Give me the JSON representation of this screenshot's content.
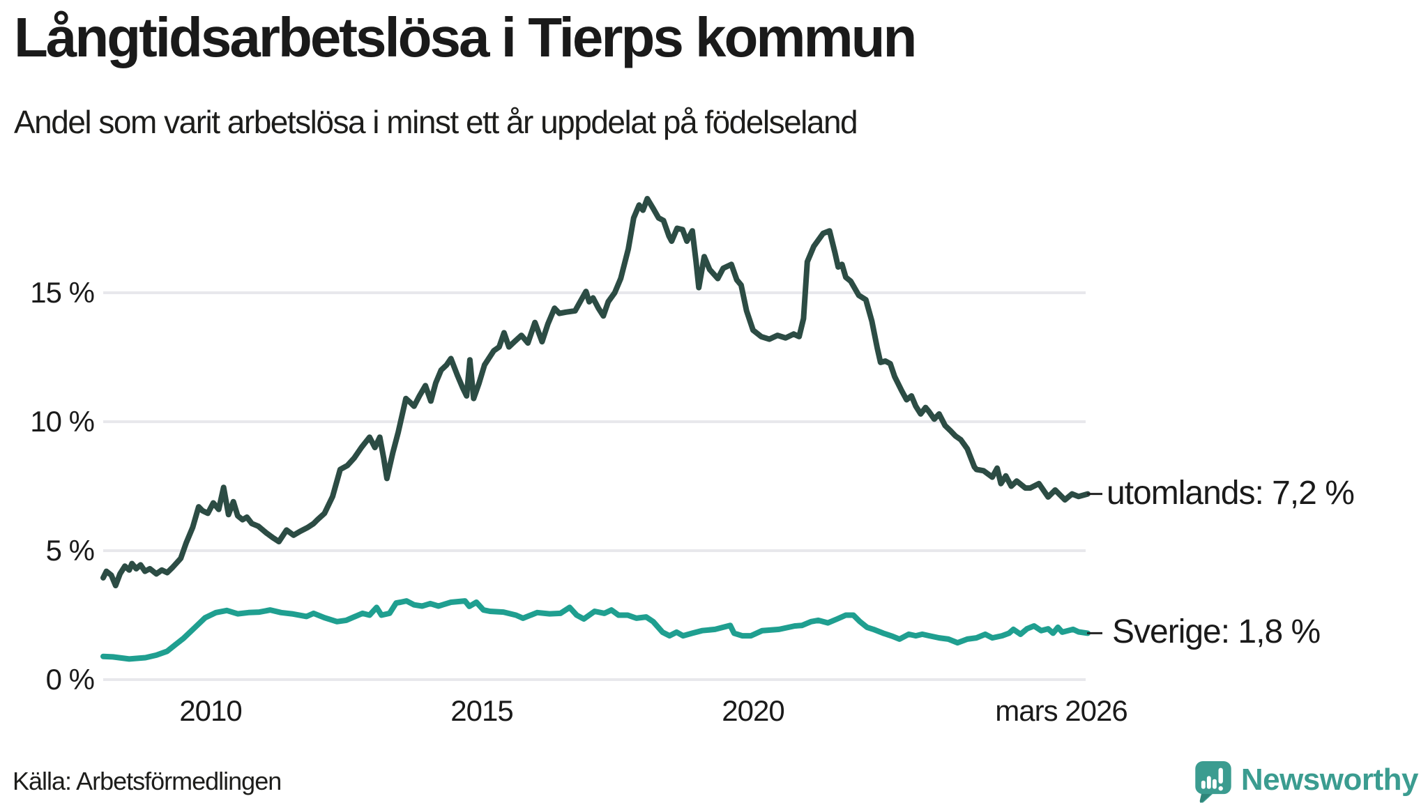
{
  "header": {
    "title": "Långtidsarbetslösa i Tierps kommun",
    "subtitle": "Andel som varit arbetslösa i minst ett år uppdelat på födelseland"
  },
  "footer": {
    "source": "Källa: Arbetsförmedlingen",
    "brand": "Newsworthy"
  },
  "colors": {
    "utomlands_line": "#2c4c44",
    "sverige_line": "#1f9f90",
    "gridline": "#e8e8ec",
    "text": "#1a1a1a",
    "brand_teal": "#3b9c90",
    "brand_teal_dark": "#2f8579"
  },
  "chart_data": {
    "type": "line",
    "title": "Långtidsarbetslösa i Tierps kommun",
    "subtitle": "Andel som varit arbetslösa i minst ett år uppdelat på födelseland",
    "source": "Källa: Arbetsförmedlingen",
    "grid": true,
    "unit": "%",
    "x_axis": {
      "start_year": 2008.0,
      "end_year": 2026.17,
      "ticks": [
        {
          "label": "2010",
          "year": 2010.0
        },
        {
          "label": "2015",
          "year": 2015.0
        },
        {
          "label": "2020",
          "year": 2020.0
        },
        {
          "label": "mars 2026",
          "year": 2026.17
        }
      ]
    },
    "y_axis": {
      "min": 0,
      "max": 18.7,
      "ticks": [
        {
          "label": "0 %",
          "value": 0
        },
        {
          "label": "5 %",
          "value": 5
        },
        {
          "label": "10 %",
          "value": 10
        },
        {
          "label": "15 %",
          "value": 15
        }
      ]
    },
    "series": [
      {
        "name": "utomlands",
        "label": "utomlands: 7,2 %",
        "last_value": 7.2,
        "color": "#2c4c44",
        "points": [
          [
            2008.02,
            3.95
          ],
          [
            2008.08,
            4.2
          ],
          [
            2008.17,
            4.05
          ],
          [
            2008.25,
            3.65
          ],
          [
            2008.33,
            4.1
          ],
          [
            2008.42,
            4.4
          ],
          [
            2008.5,
            4.25
          ],
          [
            2008.55,
            4.5
          ],
          [
            2008.63,
            4.3
          ],
          [
            2008.71,
            4.45
          ],
          [
            2008.79,
            4.2
          ],
          [
            2008.88,
            4.3
          ],
          [
            2009.0,
            4.1
          ],
          [
            2009.1,
            4.25
          ],
          [
            2009.2,
            4.15
          ],
          [
            2009.3,
            4.35
          ],
          [
            2009.45,
            4.7
          ],
          [
            2009.55,
            5.3
          ],
          [
            2009.67,
            5.9
          ],
          [
            2009.78,
            6.7
          ],
          [
            2009.85,
            6.55
          ],
          [
            2009.95,
            6.45
          ],
          [
            2010.05,
            6.85
          ],
          [
            2010.15,
            6.6
          ],
          [
            2010.24,
            7.45
          ],
          [
            2010.33,
            6.4
          ],
          [
            2010.42,
            6.9
          ],
          [
            2010.5,
            6.35
          ],
          [
            2010.59,
            6.2
          ],
          [
            2010.67,
            6.3
          ],
          [
            2010.76,
            6.05
          ],
          [
            2010.88,
            5.95
          ],
          [
            2011.02,
            5.7
          ],
          [
            2011.15,
            5.5
          ],
          [
            2011.26,
            5.35
          ],
          [
            2011.4,
            5.8
          ],
          [
            2011.53,
            5.6
          ],
          [
            2011.65,
            5.75
          ],
          [
            2011.79,
            5.9
          ],
          [
            2011.9,
            6.05
          ],
          [
            2011.97,
            6.2
          ],
          [
            2012.1,
            6.45
          ],
          [
            2012.25,
            7.1
          ],
          [
            2012.39,
            8.15
          ],
          [
            2012.52,
            8.3
          ],
          [
            2012.65,
            8.6
          ],
          [
            2012.78,
            9.0
          ],
          [
            2012.93,
            9.4
          ],
          [
            2013.03,
            9.0
          ],
          [
            2013.12,
            9.4
          ],
          [
            2013.19,
            8.6
          ],
          [
            2013.25,
            7.8
          ],
          [
            2013.36,
            8.8
          ],
          [
            2013.46,
            9.6
          ],
          [
            2013.6,
            10.9
          ],
          [
            2013.68,
            10.75
          ],
          [
            2013.75,
            10.6
          ],
          [
            2013.85,
            11.0
          ],
          [
            2013.96,
            11.4
          ],
          [
            2014.06,
            10.8
          ],
          [
            2014.15,
            11.5
          ],
          [
            2014.25,
            12.0
          ],
          [
            2014.35,
            12.2
          ],
          [
            2014.43,
            12.45
          ],
          [
            2014.55,
            11.8
          ],
          [
            2014.65,
            11.3
          ],
          [
            2014.72,
            11.0
          ],
          [
            2014.78,
            12.4
          ],
          [
            2014.85,
            10.9
          ],
          [
            2014.95,
            11.5
          ],
          [
            2015.05,
            12.2
          ],
          [
            2015.22,
            12.75
          ],
          [
            2015.32,
            12.9
          ],
          [
            2015.41,
            13.45
          ],
          [
            2015.5,
            12.9
          ],
          [
            2015.6,
            13.1
          ],
          [
            2015.73,
            13.35
          ],
          [
            2015.85,
            13.05
          ],
          [
            2015.98,
            13.85
          ],
          [
            2016.11,
            13.1
          ],
          [
            2016.22,
            13.8
          ],
          [
            2016.34,
            14.4
          ],
          [
            2016.43,
            14.2
          ],
          [
            2016.55,
            14.25
          ],
          [
            2016.72,
            14.3
          ],
          [
            2016.8,
            14.6
          ],
          [
            2016.92,
            15.05
          ],
          [
            2016.98,
            14.65
          ],
          [
            2017.05,
            14.8
          ],
          [
            2017.15,
            14.4
          ],
          [
            2017.24,
            14.1
          ],
          [
            2017.33,
            14.65
          ],
          [
            2017.45,
            15.0
          ],
          [
            2017.56,
            15.55
          ],
          [
            2017.7,
            16.7
          ],
          [
            2017.8,
            17.9
          ],
          [
            2017.9,
            18.4
          ],
          [
            2017.97,
            18.2
          ],
          [
            2018.05,
            18.65
          ],
          [
            2018.15,
            18.3
          ],
          [
            2018.26,
            17.9
          ],
          [
            2018.35,
            17.8
          ],
          [
            2018.45,
            17.2
          ],
          [
            2018.5,
            17.0
          ],
          [
            2018.6,
            17.5
          ],
          [
            2018.7,
            17.45
          ],
          [
            2018.78,
            17.0
          ],
          [
            2018.88,
            17.4
          ],
          [
            2018.95,
            16.2
          ],
          [
            2019.0,
            15.2
          ],
          [
            2019.1,
            16.4
          ],
          [
            2019.2,
            15.9
          ],
          [
            2019.35,
            15.55
          ],
          [
            2019.45,
            15.95
          ],
          [
            2019.6,
            16.1
          ],
          [
            2019.7,
            15.5
          ],
          [
            2019.78,
            15.3
          ],
          [
            2019.88,
            14.3
          ],
          [
            2020.0,
            13.55
          ],
          [
            2020.15,
            13.3
          ],
          [
            2020.3,
            13.2
          ],
          [
            2020.45,
            13.35
          ],
          [
            2020.6,
            13.25
          ],
          [
            2020.75,
            13.4
          ],
          [
            2020.85,
            13.3
          ],
          [
            2020.93,
            14.0
          ],
          [
            2021.0,
            16.2
          ],
          [
            2021.12,
            16.8
          ],
          [
            2021.29,
            17.3
          ],
          [
            2021.41,
            17.4
          ],
          [
            2021.51,
            16.55
          ],
          [
            2021.57,
            16.0
          ],
          [
            2021.64,
            16.1
          ],
          [
            2021.71,
            15.6
          ],
          [
            2021.8,
            15.45
          ],
          [
            2021.95,
            14.9
          ],
          [
            2022.08,
            14.73
          ],
          [
            2022.19,
            13.9
          ],
          [
            2022.29,
            12.85
          ],
          [
            2022.35,
            12.3
          ],
          [
            2022.44,
            12.35
          ],
          [
            2022.53,
            12.25
          ],
          [
            2022.61,
            11.75
          ],
          [
            2022.74,
            11.2
          ],
          [
            2022.83,
            10.85
          ],
          [
            2022.92,
            11.0
          ],
          [
            2023.0,
            10.6
          ],
          [
            2023.09,
            10.3
          ],
          [
            2023.18,
            10.55
          ],
          [
            2023.24,
            10.4
          ],
          [
            2023.34,
            10.1
          ],
          [
            2023.43,
            10.3
          ],
          [
            2023.54,
            9.85
          ],
          [
            2023.64,
            9.65
          ],
          [
            2023.73,
            9.45
          ],
          [
            2023.83,
            9.3
          ],
          [
            2023.95,
            8.95
          ],
          [
            2024.08,
            8.25
          ],
          [
            2024.12,
            8.15
          ],
          [
            2024.25,
            8.1
          ],
          [
            2024.41,
            7.85
          ],
          [
            2024.5,
            8.2
          ],
          [
            2024.57,
            7.6
          ],
          [
            2024.66,
            7.9
          ],
          [
            2024.76,
            7.5
          ],
          [
            2024.86,
            7.7
          ],
          [
            2025.02,
            7.43
          ],
          [
            2025.11,
            7.43
          ],
          [
            2025.27,
            7.6
          ],
          [
            2025.44,
            7.08
          ],
          [
            2025.57,
            7.35
          ],
          [
            2025.75,
            6.97
          ],
          [
            2025.88,
            7.2
          ],
          [
            2026.0,
            7.1
          ],
          [
            2026.17,
            7.2
          ]
        ]
      },
      {
        "name": "Sverige",
        "label": "Sverige: 1,8 %",
        "last_value": 1.8,
        "color": "#1f9f90",
        "points": [
          [
            2008.02,
            0.9
          ],
          [
            2008.2,
            0.88
          ],
          [
            2008.5,
            0.8
          ],
          [
            2008.8,
            0.85
          ],
          [
            2009.0,
            0.95
          ],
          [
            2009.2,
            1.1
          ],
          [
            2009.35,
            1.35
          ],
          [
            2009.5,
            1.6
          ],
          [
            2009.7,
            2.0
          ],
          [
            2009.9,
            2.4
          ],
          [
            2010.1,
            2.6
          ],
          [
            2010.3,
            2.68
          ],
          [
            2010.5,
            2.55
          ],
          [
            2010.7,
            2.6
          ],
          [
            2010.9,
            2.62
          ],
          [
            2011.1,
            2.7
          ],
          [
            2011.3,
            2.6
          ],
          [
            2011.5,
            2.55
          ],
          [
            2011.77,
            2.45
          ],
          [
            2011.9,
            2.57
          ],
          [
            2012.1,
            2.4
          ],
          [
            2012.33,
            2.25
          ],
          [
            2012.5,
            2.3
          ],
          [
            2012.8,
            2.57
          ],
          [
            2012.93,
            2.5
          ],
          [
            2013.06,
            2.8
          ],
          [
            2013.15,
            2.5
          ],
          [
            2013.3,
            2.57
          ],
          [
            2013.42,
            2.97
          ],
          [
            2013.5,
            3.0
          ],
          [
            2013.61,
            3.05
          ],
          [
            2013.75,
            2.9
          ],
          [
            2013.9,
            2.85
          ],
          [
            2014.05,
            2.95
          ],
          [
            2014.2,
            2.85
          ],
          [
            2014.43,
            3.0
          ],
          [
            2014.69,
            3.05
          ],
          [
            2014.77,
            2.84
          ],
          [
            2014.9,
            3.0
          ],
          [
            2015.03,
            2.7
          ],
          [
            2015.15,
            2.65
          ],
          [
            2015.4,
            2.62
          ],
          [
            2015.63,
            2.5
          ],
          [
            2015.76,
            2.38
          ],
          [
            2016.02,
            2.6
          ],
          [
            2016.25,
            2.55
          ],
          [
            2016.45,
            2.57
          ],
          [
            2016.62,
            2.8
          ],
          [
            2016.75,
            2.5
          ],
          [
            2016.88,
            2.35
          ],
          [
            2017.08,
            2.65
          ],
          [
            2017.26,
            2.57
          ],
          [
            2017.39,
            2.7
          ],
          [
            2017.52,
            2.5
          ],
          [
            2017.69,
            2.5
          ],
          [
            2017.85,
            2.38
          ],
          [
            2018.03,
            2.43
          ],
          [
            2018.16,
            2.25
          ],
          [
            2018.33,
            1.84
          ],
          [
            2018.46,
            1.7
          ],
          [
            2018.59,
            1.84
          ],
          [
            2018.71,
            1.7
          ],
          [
            2018.88,
            1.8
          ],
          [
            2019.06,
            1.9
          ],
          [
            2019.3,
            1.95
          ],
          [
            2019.58,
            2.1
          ],
          [
            2019.65,
            1.8
          ],
          [
            2019.8,
            1.7
          ],
          [
            2019.96,
            1.7
          ],
          [
            2020.17,
            1.9
          ],
          [
            2020.48,
            1.95
          ],
          [
            2020.77,
            2.08
          ],
          [
            2020.9,
            2.1
          ],
          [
            2021.07,
            2.25
          ],
          [
            2021.2,
            2.3
          ],
          [
            2021.38,
            2.2
          ],
          [
            2021.55,
            2.35
          ],
          [
            2021.71,
            2.5
          ],
          [
            2021.85,
            2.5
          ],
          [
            2021.97,
            2.25
          ],
          [
            2022.1,
            2.03
          ],
          [
            2022.22,
            1.95
          ],
          [
            2022.4,
            1.8
          ],
          [
            2022.57,
            1.68
          ],
          [
            2022.7,
            1.57
          ],
          [
            2022.87,
            1.76
          ],
          [
            2023.0,
            1.7
          ],
          [
            2023.12,
            1.76
          ],
          [
            2023.25,
            1.7
          ],
          [
            2023.43,
            1.62
          ],
          [
            2023.6,
            1.57
          ],
          [
            2023.77,
            1.43
          ],
          [
            2023.95,
            1.57
          ],
          [
            2024.12,
            1.62
          ],
          [
            2024.28,
            1.76
          ],
          [
            2024.41,
            1.62
          ],
          [
            2024.59,
            1.7
          ],
          [
            2024.72,
            1.8
          ],
          [
            2024.8,
            1.95
          ],
          [
            2024.93,
            1.76
          ],
          [
            2025.05,
            1.97
          ],
          [
            2025.18,
            2.08
          ],
          [
            2025.31,
            1.9
          ],
          [
            2025.44,
            1.97
          ],
          [
            2025.53,
            1.8
          ],
          [
            2025.62,
            2.03
          ],
          [
            2025.7,
            1.84
          ],
          [
            2025.9,
            1.95
          ],
          [
            2026.0,
            1.85
          ],
          [
            2026.17,
            1.8
          ]
        ]
      }
    ]
  }
}
